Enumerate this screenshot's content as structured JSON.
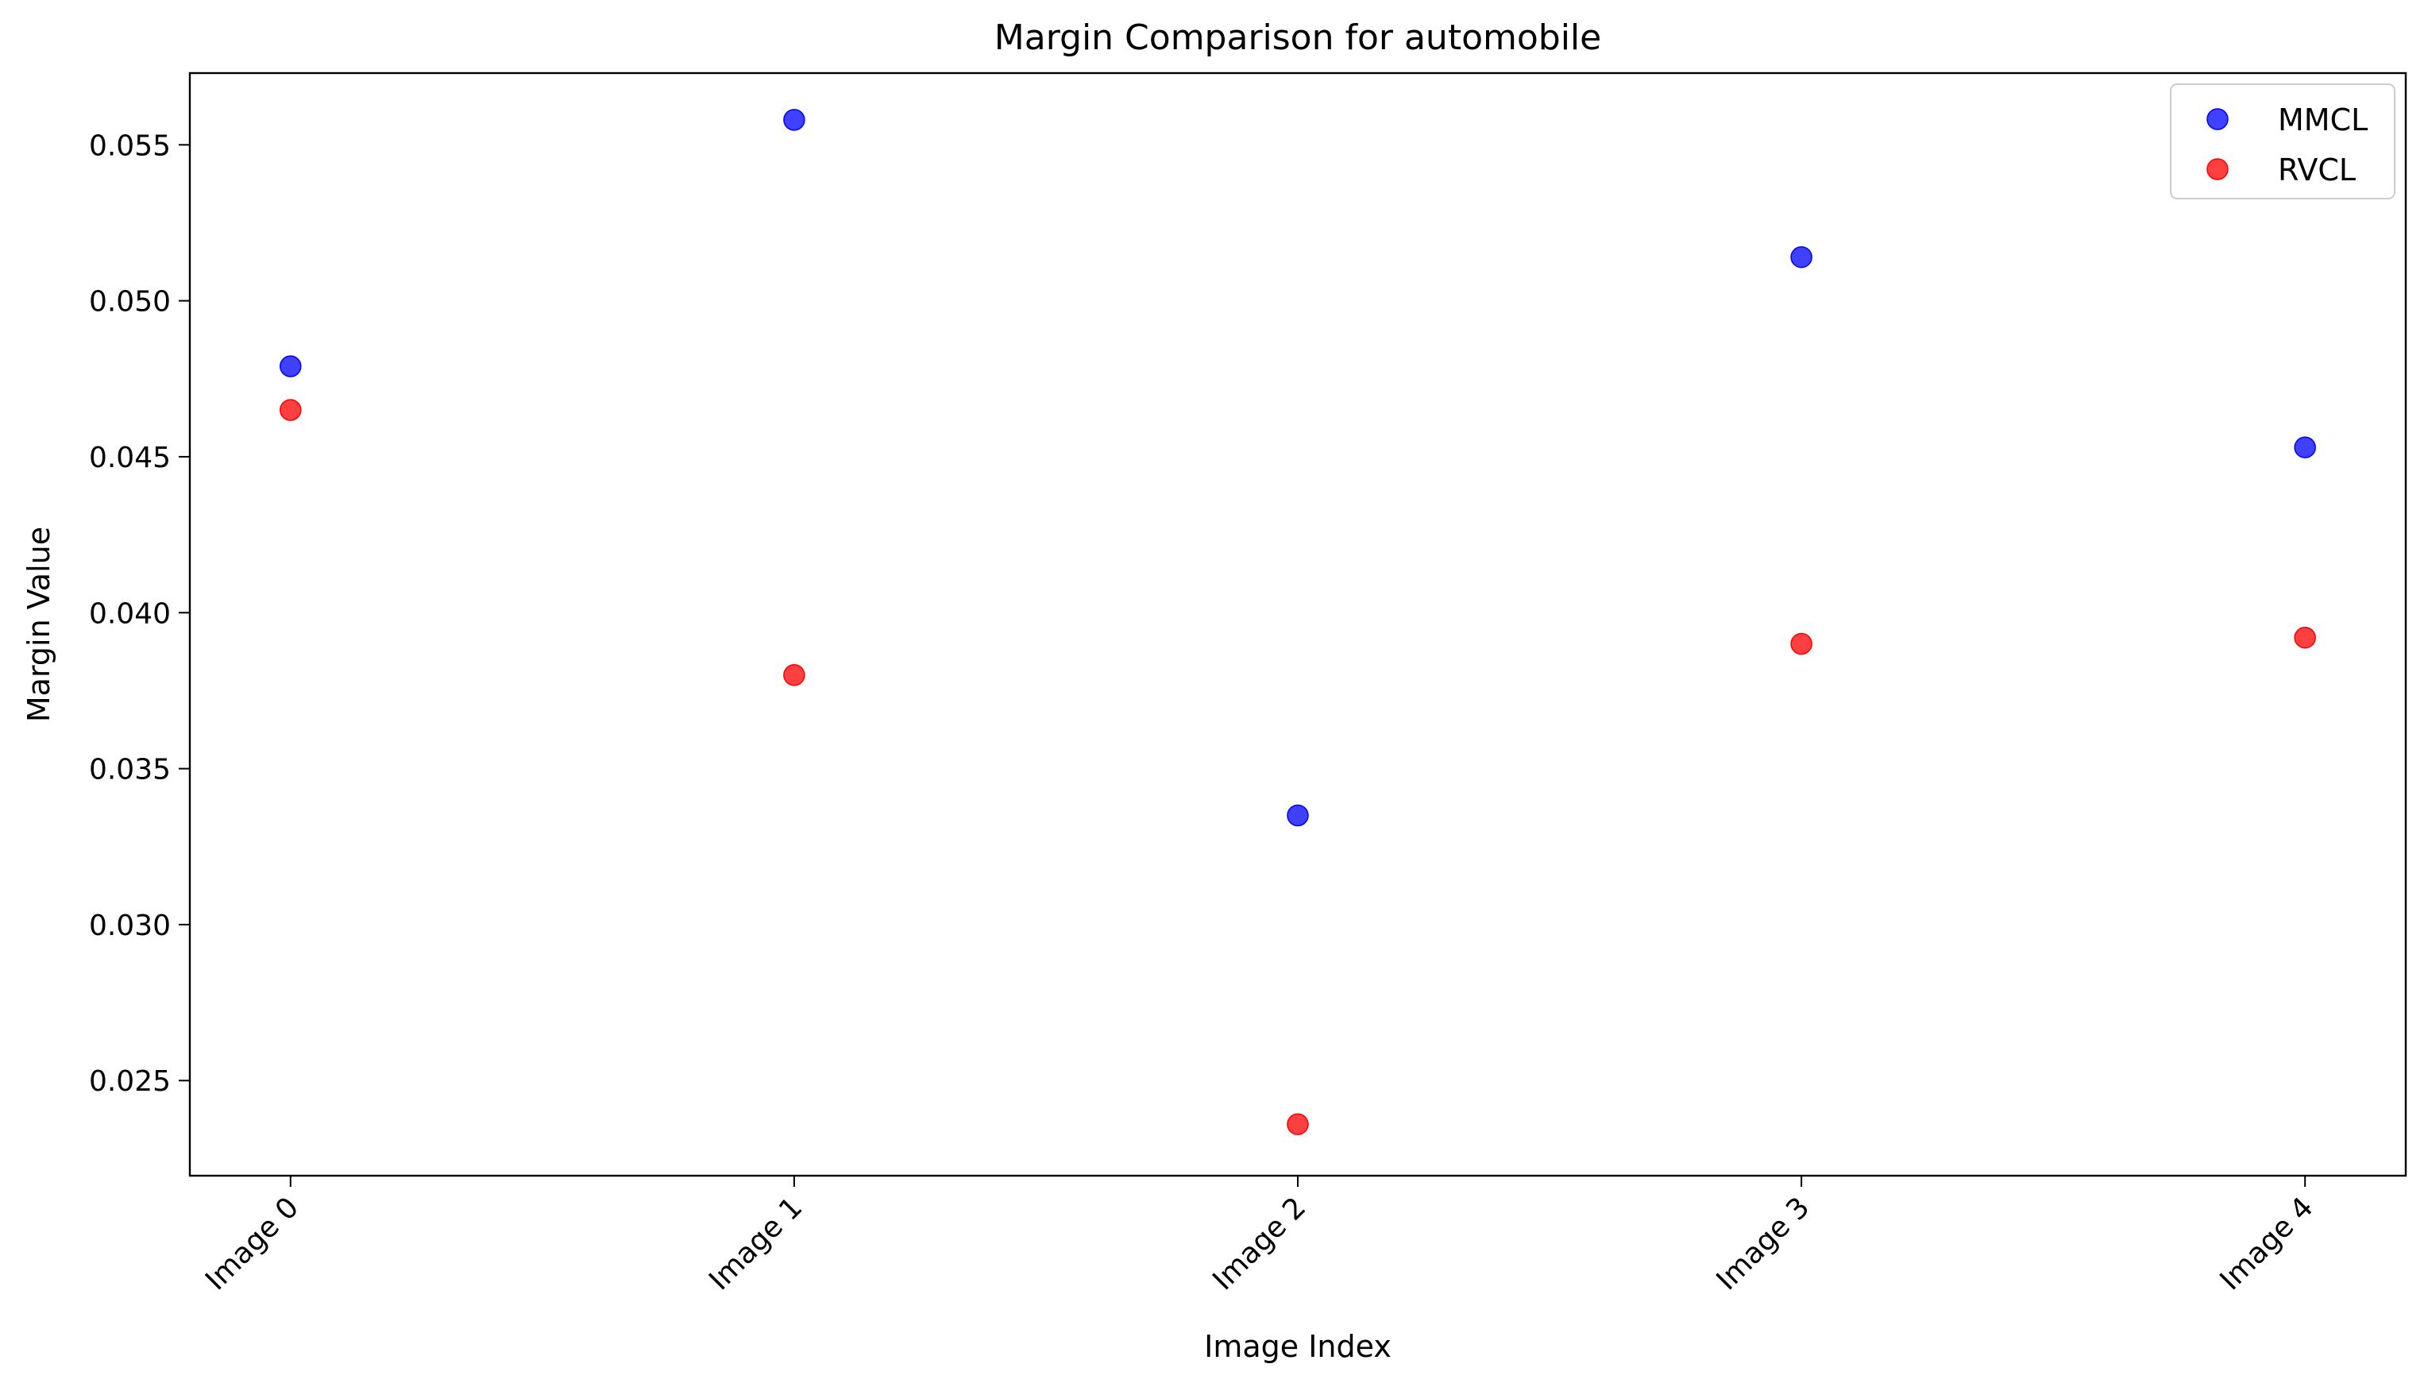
{
  "chart_data": {
    "type": "scatter",
    "title": "Margin Comparison for automobile",
    "xlabel": "Image Index",
    "ylabel": "Margin Value",
    "categories": [
      "Image 0",
      "Image 1",
      "Image 2",
      "Image 3",
      "Image 4"
    ],
    "xlim": [
      -0.2,
      4.2
    ],
    "ylim": [
      0.02195,
      0.0573
    ],
    "yticks": [
      0.025,
      0.03,
      0.035,
      0.04,
      0.045,
      0.05,
      0.055
    ],
    "ytick_labels": [
      "0.025",
      "0.030",
      "0.035",
      "0.040",
      "0.045",
      "0.050",
      "0.055"
    ],
    "grid": false,
    "legend_position": "top-right",
    "series": [
      {
        "name": "MMCL",
        "color": "#0000ff",
        "values": [
          0.0479,
          0.0558,
          0.0335,
          0.0514,
          0.0453
        ]
      },
      {
        "name": "RVCL",
        "color": "#ff0000",
        "values": [
          0.0465,
          0.038,
          0.0236,
          0.039,
          0.0392
        ]
      }
    ]
  }
}
